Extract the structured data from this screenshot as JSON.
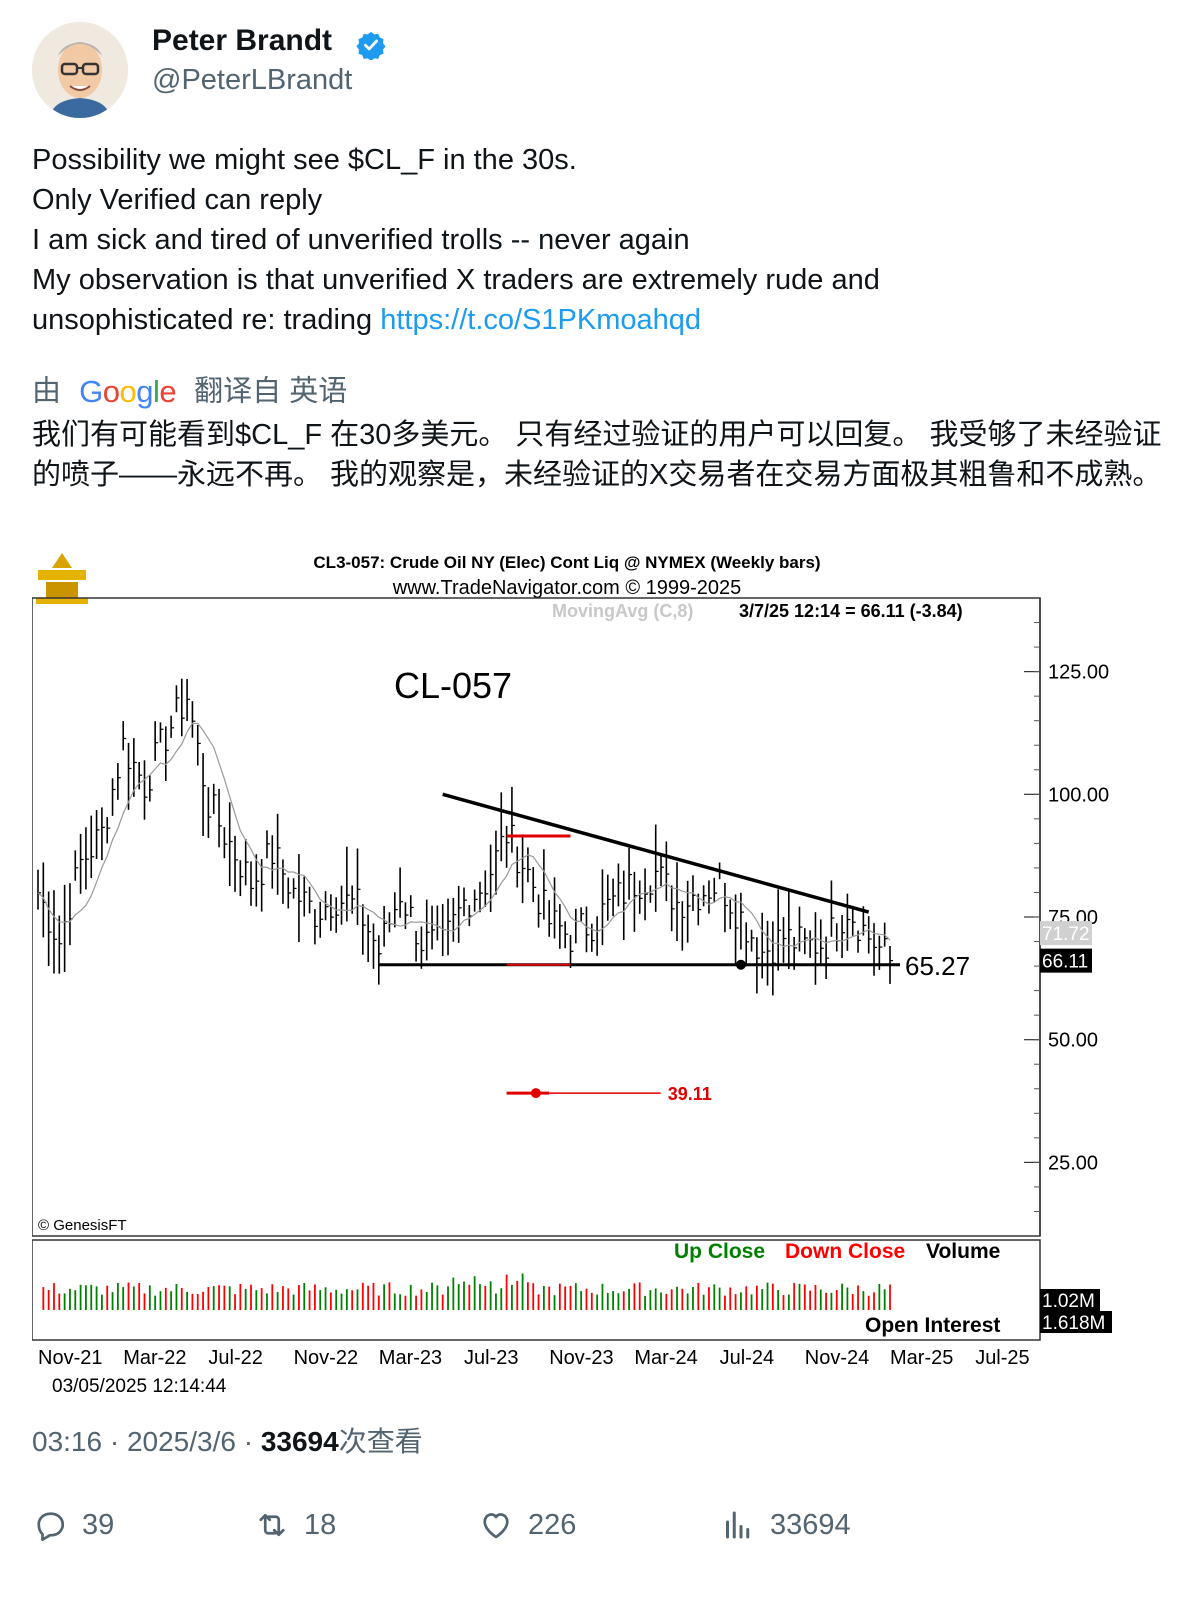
{
  "user": {
    "name": "Peter Brandt",
    "handle": "@PeterLBrandt"
  },
  "tweet": {
    "lines": [
      "Possibility we might see $CL_F in the 30s.",
      "Only Verified can reply",
      "I am sick and tired of unverified trolls -- never again",
      "My observation is that unverified X traders are extremely rude and"
    ],
    "last_line_text": "unsophisticated re: trading ",
    "link": "https://t.co/S1PKmoahqd"
  },
  "translation": {
    "prefix": "由",
    "brand": "Google",
    "suffix": "翻译自 英语",
    "text": "我们有可能看到$CL_F 在30多美元。 只有经过验证的用户可以回复。 我受够了未经验证的喷子——永远不再。 我的观察是，未经验证的X交易者在交易方面极其粗鲁和不成熟。"
  },
  "chart_data": {
    "type": "bar",
    "title": "CL3-057:  Crude Oil NY (Elec) Cont Liq @ NYMEX  (Weekly bars)",
    "subtitle": "www.TradeNavigator.com © 1999-2025",
    "moving_avg_label": "MovingAvg (C,8)",
    "last_bar_label": "3/7/25 12:14 = 66.11 (-3.84)",
    "annotation": "CL-057",
    "copyright": "© GenesisFT",
    "support_label": "65.27",
    "target_label": "39.11",
    "ma_value_label": "71.72",
    "last_price_label": "66.11",
    "ylim": [
      10,
      140
    ],
    "y_ticks": [
      "125.00",
      "100.00",
      "75.00",
      "50.00",
      "25.00"
    ],
    "y_tick_values": [
      125,
      100,
      75,
      50,
      25
    ],
    "x_ticks": [
      "Nov-21",
      "Mar-22",
      "Jul-22",
      "Nov-22",
      "Mar-23",
      "Jul-23",
      "Nov-23",
      "Mar-24",
      "Jul-24",
      "Nov-24",
      "Mar-25",
      "Jul-25"
    ],
    "approx_closes": [
      {
        "date": "Nov-21",
        "close": 80
      },
      {
        "date": "Dec-21",
        "close": 70
      },
      {
        "date": "Jan-22",
        "close": 86
      },
      {
        "date": "Feb-22",
        "close": 92
      },
      {
        "date": "Mar-22",
        "close": 110
      },
      {
        "date": "Apr-22",
        "close": 102
      },
      {
        "date": "May-22",
        "close": 112
      },
      {
        "date": "Jun-22",
        "close": 120
      },
      {
        "date": "Jul-22",
        "close": 98
      },
      {
        "date": "Aug-22",
        "close": 90
      },
      {
        "date": "Sep-22",
        "close": 82
      },
      {
        "date": "Oct-22",
        "close": 88
      },
      {
        "date": "Nov-22",
        "close": 80
      },
      {
        "date": "Dec-22",
        "close": 76
      },
      {
        "date": "Jan-23",
        "close": 79
      },
      {
        "date": "Feb-23",
        "close": 77
      },
      {
        "date": "Mar-23",
        "close": 68
      },
      {
        "date": "Apr-23",
        "close": 80
      },
      {
        "date": "May-23",
        "close": 70
      },
      {
        "date": "Jun-23",
        "close": 69
      },
      {
        "date": "Jul-23",
        "close": 78
      },
      {
        "date": "Aug-23",
        "close": 82
      },
      {
        "date": "Sep-23",
        "close": 92
      },
      {
        "date": "Oct-23",
        "close": 84
      },
      {
        "date": "Nov-23",
        "close": 74
      },
      {
        "date": "Dec-23",
        "close": 71
      },
      {
        "date": "Jan-24",
        "close": 74
      },
      {
        "date": "Feb-24",
        "close": 78
      },
      {
        "date": "Mar-24",
        "close": 82
      },
      {
        "date": "Apr-24",
        "close": 84
      },
      {
        "date": "May-24",
        "close": 78
      },
      {
        "date": "Jun-24",
        "close": 80
      },
      {
        "date": "Jul-24",
        "close": 82
      },
      {
        "date": "Aug-24",
        "close": 75
      },
      {
        "date": "Sep-24",
        "close": 68
      },
      {
        "date": "Oct-24",
        "close": 71
      },
      {
        "date": "Nov-24",
        "close": 69
      },
      {
        "date": "Dec-24",
        "close": 70
      },
      {
        "date": "Jan-25",
        "close": 77
      },
      {
        "date": "Feb-25",
        "close": 71
      },
      {
        "date": "Mar-25",
        "close": 66.11
      }
    ],
    "resistance_line": [
      {
        "date": "Jun-23",
        "value": 100
      },
      {
        "date": "Feb-25",
        "value": 76
      }
    ],
    "support_line": [
      {
        "date": "Mar-23",
        "value": 65.27
      },
      {
        "date": "Mar-25",
        "value": 65.27
      }
    ],
    "volume_labels": {
      "up": "Up Close",
      "down": "Down Close",
      "volume": "Volume",
      "open_interest": "Open Interest",
      "vol_value": "1.02M",
      "oi_value": "1.618M"
    },
    "timestamp": "03/05/2025 12:14:44",
    "colors": {
      "up": "#008000",
      "down": "#ff0000",
      "trend": "#000000",
      "target": "#e00000"
    }
  },
  "meta": {
    "time": "03:16 · 2025/3/6 · ",
    "views_count": "33694",
    "views_label": "次查看"
  },
  "actions": {
    "replies": "39",
    "reposts": "18",
    "likes": "226",
    "views": "33694"
  }
}
